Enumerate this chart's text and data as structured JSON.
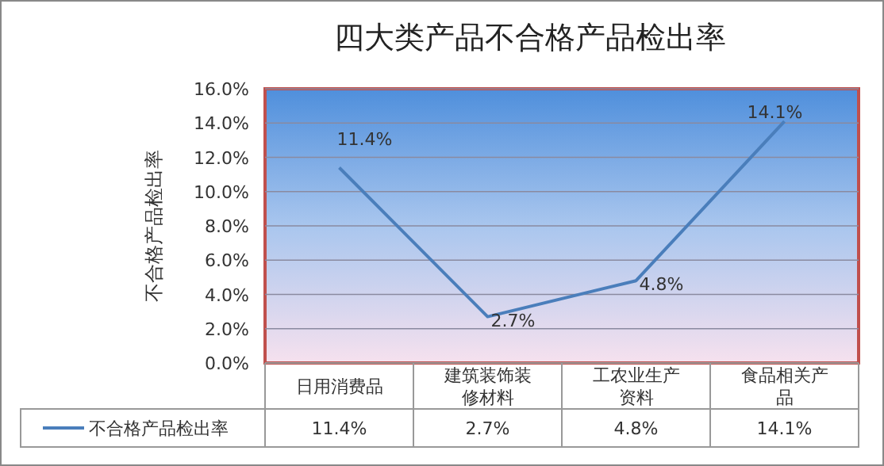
{
  "chart_data": {
    "type": "line",
    "title": "四大类产品不合格产品检出率",
    "ylabel": "不合格产品检出率",
    "categories": [
      "日用消费品",
      "建筑装饰装修材料",
      "工农业生产资料",
      "食品相关产品"
    ],
    "series": [
      {
        "name": "不合格产品检出率",
        "color": "#4a7ebb",
        "values": [
          11.4,
          2.7,
          4.8,
          14.1
        ],
        "value_labels": [
          "11.4%",
          "2.7%",
          "4.8%",
          "14.1%"
        ]
      }
    ],
    "ylim": [
      0,
      16
    ],
    "yticks": [
      {
        "value": 0,
        "label": "0.0%"
      },
      {
        "value": 2,
        "label": "2.0%"
      },
      {
        "value": 4,
        "label": "4.0%"
      },
      {
        "value": 6,
        "label": "6.0%"
      },
      {
        "value": 8,
        "label": "8.0%"
      },
      {
        "value": 10,
        "label": "10.0%"
      },
      {
        "value": 12,
        "label": "12.0%"
      },
      {
        "value": 14,
        "label": "14.0%"
      },
      {
        "value": 16,
        "label": "16.0%"
      }
    ],
    "grid": "y",
    "legend": "bottom",
    "marker": "none",
    "line_style": "solid"
  }
}
